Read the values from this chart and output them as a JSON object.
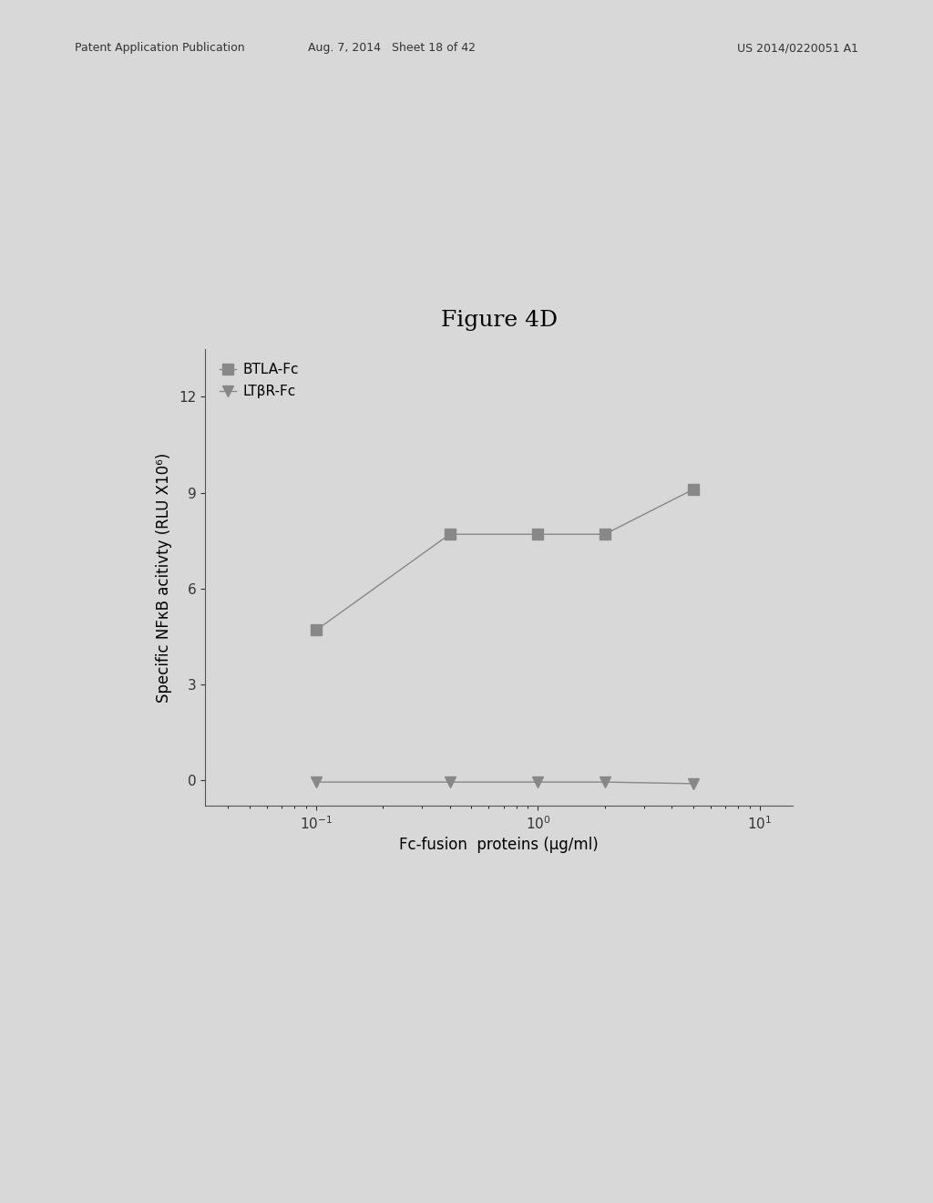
{
  "title": "Figure 4D",
  "xlabel": "Fc-fusion  proteins (μg/ml)",
  "ylabel": "Specific NFκB acitivty (RLU X10⁶)",
  "btla_x": [
    0.1,
    0.4,
    1.0,
    2.0,
    5.0
  ],
  "btla_y": [
    4.7,
    7.7,
    7.7,
    7.7,
    9.1
  ],
  "ltbr_x": [
    0.1,
    0.4,
    1.0,
    2.0,
    5.0
  ],
  "ltbr_y": [
    -0.05,
    -0.05,
    -0.05,
    -0.05,
    -0.1
  ],
  "btla_label": "BTLA-Fc",
  "ltbr_label": "LTβR-Fc",
  "color": "#888888",
  "ylim": [
    -0.8,
    13.5
  ],
  "yticks": [
    0,
    3,
    6,
    9,
    12
  ],
  "bg_color": "#d8d8d8",
  "plot_bg": "#d8d8d8",
  "title_fontsize": 18,
  "label_fontsize": 12,
  "tick_fontsize": 11,
  "legend_fontsize": 11,
  "marker_size": 8,
  "line_width": 1.0,
  "header_left": "Patent Application Publication",
  "header_mid": "Aug. 7, 2014   Sheet 18 of 42",
  "header_right": "US 2014/0220051 A1"
}
